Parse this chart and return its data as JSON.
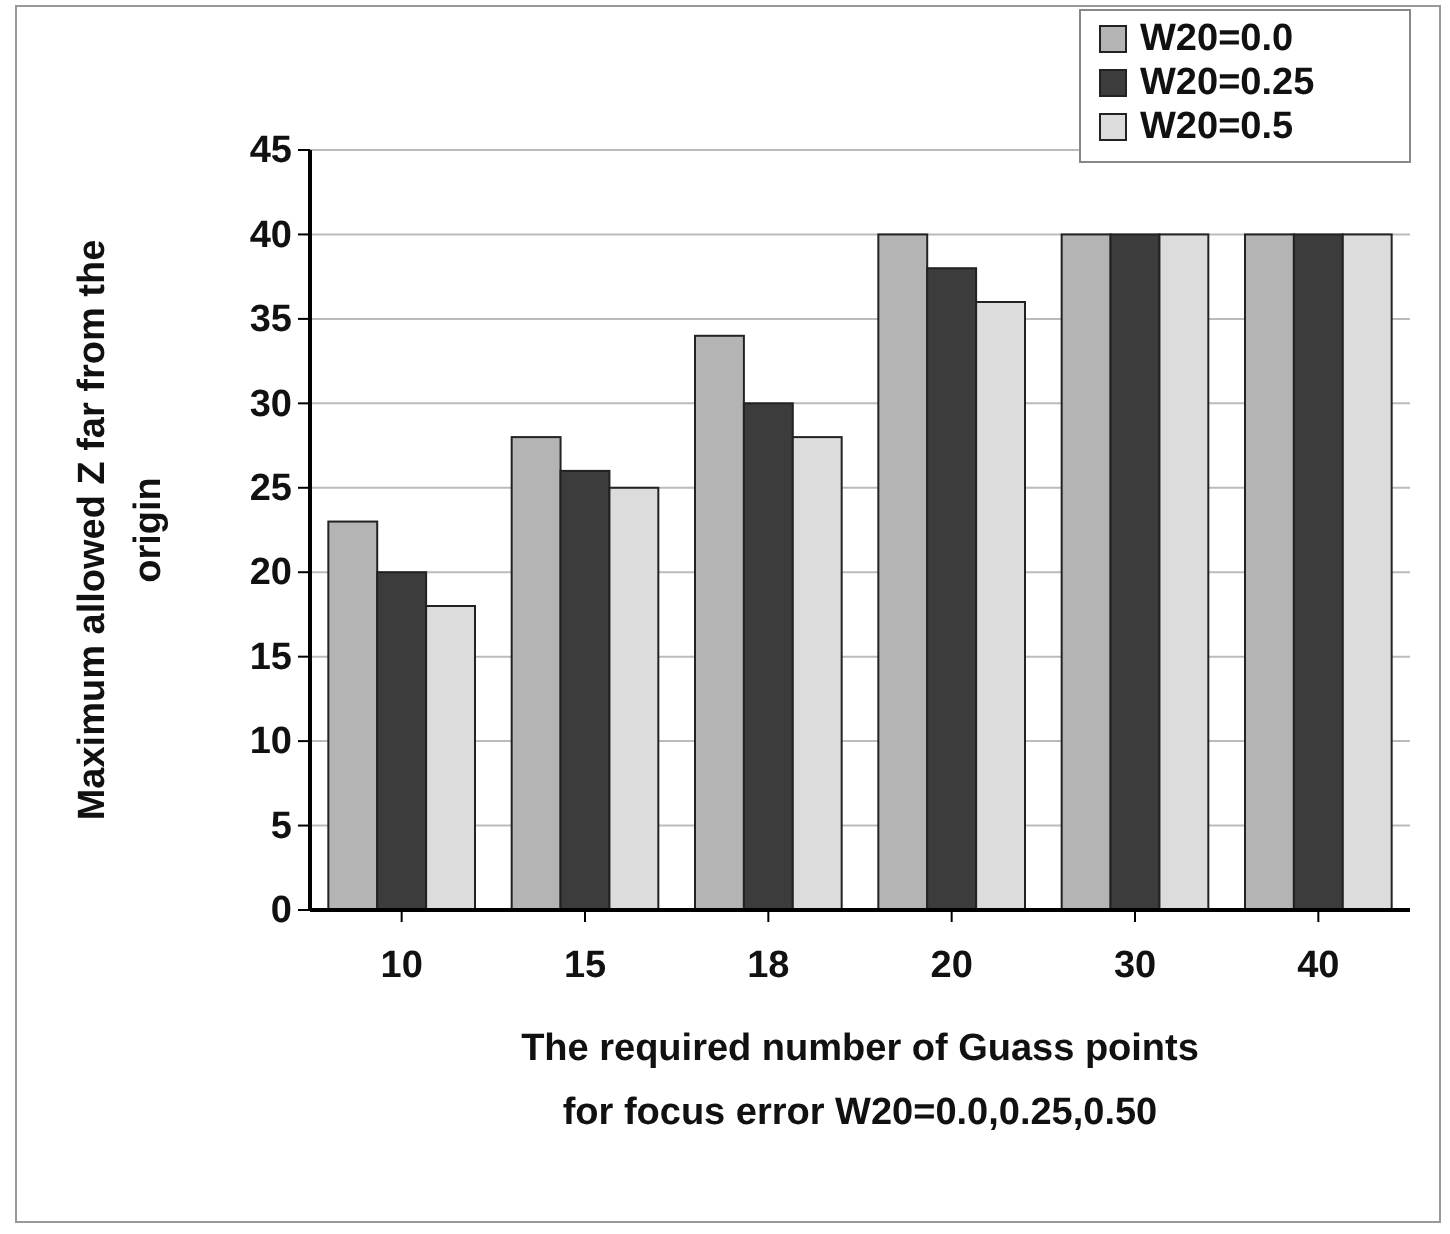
{
  "chart_data": {
    "type": "bar",
    "xlabel": "The required number of Guass points\nfor focus error W20=0.0,0.25,0.50",
    "ylabel": "Maximum  allowed Z far from the\norigin",
    "categories": [
      "10",
      "15",
      "18",
      "20",
      "30",
      "40"
    ],
    "series": [
      {
        "name": "W20=0.0",
        "color": "#b4b4b4",
        "values": [
          23,
          28,
          34,
          40,
          40,
          40
        ]
      },
      {
        "name": "W20=0.25",
        "color": "#3c3c3c",
        "values": [
          20,
          26,
          30,
          38,
          40,
          40
        ]
      },
      {
        "name": "W20=0.5",
        "color": "#dcdcdc",
        "values": [
          18,
          25,
          28,
          36,
          40,
          40
        ]
      }
    ],
    "ylim": [
      0,
      45
    ],
    "yticks": [
      0,
      5,
      10,
      15,
      20,
      25,
      30,
      35,
      40,
      45
    ],
    "grid": "y",
    "legend": "top right"
  }
}
